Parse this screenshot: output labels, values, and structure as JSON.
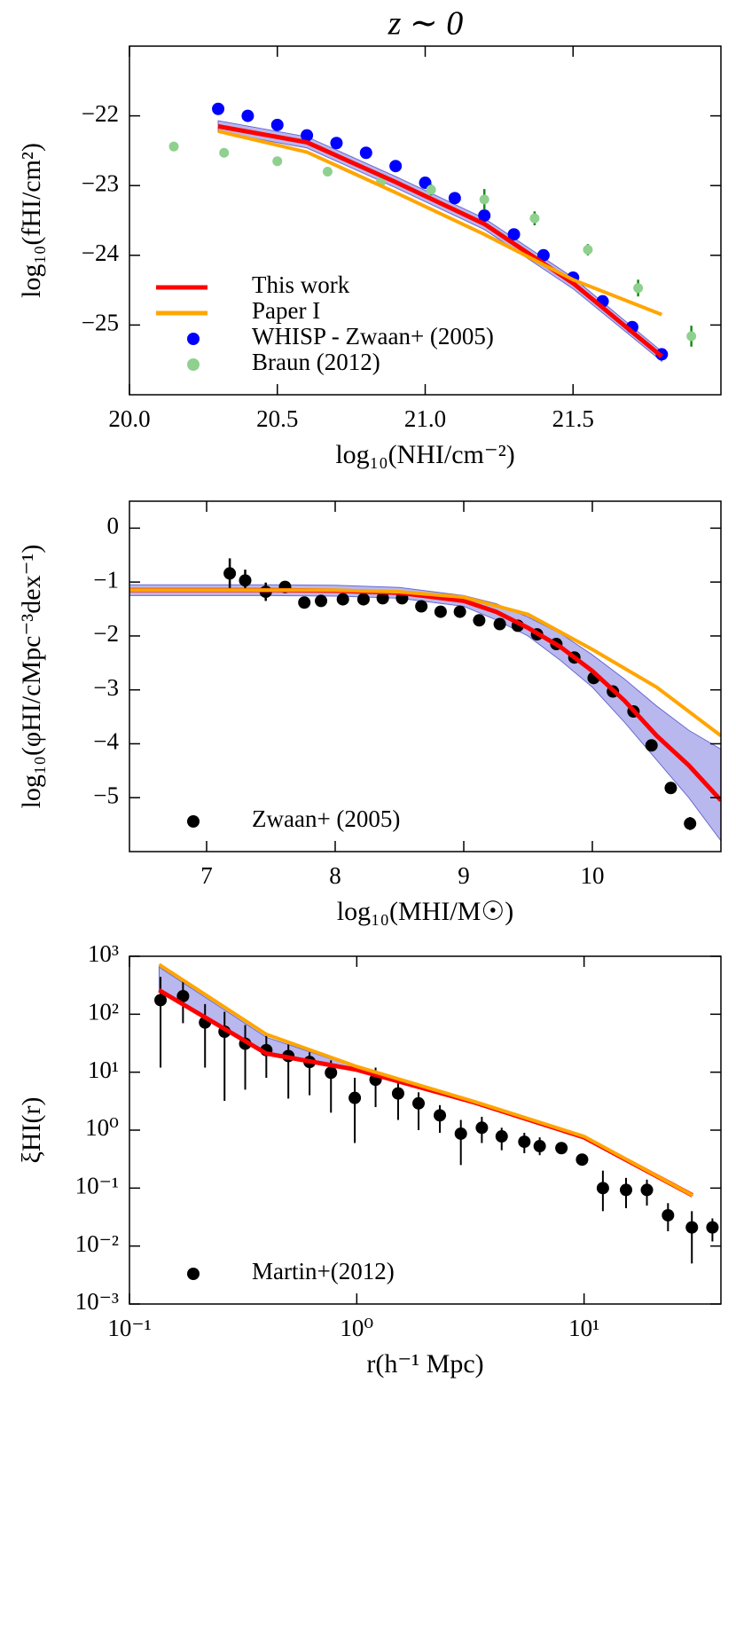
{
  "chart_data": [
    {
      "type": "line",
      "title": "z ∼ 0",
      "xlabel": "log₁₀(NHI/cm⁻²)",
      "ylabel": "log₁₀(fHI/cm²)",
      "xlim": [
        20,
        22
      ],
      "ylim": [
        -26,
        -21
      ],
      "xticks": [
        {
          "value": 20,
          "label": "20.0"
        },
        20.5,
        {
          "value": 21,
          "label": "21.0"
        },
        21.5
      ],
      "yticks": [
        {
          "value": -22,
          "label": "−22"
        },
        {
          "value": -23,
          "label": "−23"
        },
        {
          "value": -24,
          "label": "−24"
        },
        {
          "value": -25,
          "label": "−25"
        }
      ],
      "legend": "lower left",
      "series": [
        {
          "name": "This work",
          "type": "line",
          "color": "#ff0000",
          "band_color": "#9a9ae8",
          "x": [
            20.3,
            20.6,
            20.9,
            21.2,
            21.5,
            21.8
          ],
          "values": [
            -22.15,
            -22.38,
            -22.95,
            -23.55,
            -24.4,
            -25.45
          ],
          "upper": [
            -22.07,
            -22.3,
            -22.87,
            -23.47,
            -24.32,
            -25.38
          ],
          "lower": [
            -22.23,
            -22.46,
            -23.03,
            -23.63,
            -24.48,
            -25.52
          ]
        },
        {
          "name": "Paper I",
          "type": "line",
          "color": "#ffa500",
          "x": [
            20.3,
            20.6,
            20.9,
            21.2,
            21.5,
            21.8
          ],
          "values": [
            -22.22,
            -22.52,
            -23.1,
            -23.7,
            -24.35,
            -24.85
          ]
        },
        {
          "name": "WHISP - Zwaan+ (2005)",
          "type": "scatter",
          "color": "#0000ff",
          "x": [
            20.3,
            20.4,
            20.5,
            20.6,
            20.7,
            20.8,
            20.9,
            21.0,
            21.1,
            21.2,
            21.3,
            21.4,
            21.5,
            21.6,
            21.7,
            21.8
          ],
          "values": [
            -21.9,
            -22.0,
            -22.13,
            -22.28,
            -22.39,
            -22.53,
            -22.72,
            -22.96,
            -23.18,
            -23.43,
            -23.7,
            -24.0,
            -24.32,
            -24.66,
            -25.03,
            -25.42
          ]
        },
        {
          "name": "Braun (2012)",
          "type": "scatter",
          "color": "#8fd08f",
          "error_color": "#1a8a1a",
          "x": [
            20.15,
            20.32,
            20.5,
            20.67,
            20.85,
            21.02,
            21.2,
            21.37,
            21.55,
            21.72,
            21.9
          ],
          "values": [
            -22.44,
            -22.53,
            -22.65,
            -22.8,
            -22.95,
            -23.06,
            -23.2,
            -23.47,
            -23.92,
            -24.47,
            -25.16
          ],
          "errors": [
            0.03,
            0.03,
            0.04,
            0.05,
            0.05,
            0.08,
            0.15,
            0.1,
            0.08,
            0.12,
            0.15
          ]
        }
      ]
    },
    {
      "type": "line",
      "xlabel": "log₁₀(MHI/M☉)",
      "ylabel": "log₁₀(φHI/cMpc⁻³dex⁻¹)",
      "xlim": [
        6.4,
        11
      ],
      "ylim": [
        -6,
        0.5
      ],
      "xticks": [
        7,
        8,
        9,
        10
      ],
      "yticks": [
        0,
        {
          "value": -1,
          "label": "−1"
        },
        {
          "value": -2,
          "label": "−2"
        },
        {
          "value": -3,
          "label": "−3"
        },
        {
          "value": -4,
          "label": "−4"
        },
        {
          "value": -5,
          "label": "−5"
        }
      ],
      "legend": "lower left",
      "series": [
        {
          "type": "line",
          "color": "#ff0000",
          "band_color": "#9a9ae8",
          "x": [
            6.4,
            7,
            7.5,
            8,
            8.5,
            9,
            9.25,
            9.5,
            9.75,
            10,
            10.25,
            10.5,
            10.75,
            11
          ],
          "values": [
            -1.15,
            -1.15,
            -1.15,
            -1.16,
            -1.2,
            -1.35,
            -1.55,
            -1.85,
            -2.2,
            -2.65,
            -3.2,
            -3.85,
            -4.4,
            -5.05
          ],
          "upper": [
            -1.05,
            -1.05,
            -1.05,
            -1.06,
            -1.1,
            -1.25,
            -1.4,
            -1.65,
            -1.95,
            -2.35,
            -2.8,
            -3.3,
            -3.75,
            -4.1
          ],
          "lower": [
            -1.25,
            -1.25,
            -1.25,
            -1.26,
            -1.3,
            -1.45,
            -1.7,
            -2.0,
            -2.45,
            -2.95,
            -3.6,
            -4.3,
            -5.0,
            -5.8
          ]
        },
        {
          "type": "line",
          "color": "#ffa500",
          "x": [
            6.4,
            7,
            8,
            8.5,
            9,
            9.5,
            10,
            10.5,
            11
          ],
          "values": [
            -1.15,
            -1.15,
            -1.15,
            -1.18,
            -1.28,
            -1.6,
            -2.25,
            -2.95,
            -3.85
          ]
        },
        {
          "name": "Zwaan+ (2005)",
          "type": "scatter",
          "color": "#000000",
          "error_color": "#000000",
          "x": [
            7.18,
            7.3,
            7.46,
            7.61,
            7.76,
            7.89,
            8.06,
            8.22,
            8.37,
            8.52,
            8.67,
            8.82,
            8.97,
            9.12,
            9.28,
            9.42,
            9.57,
            9.72,
            9.86,
            10.01,
            10.16,
            10.32,
            10.46,
            10.61,
            10.76
          ],
          "values": [
            -0.84,
            -0.97,
            -1.18,
            -1.09,
            -1.38,
            -1.35,
            -1.32,
            -1.32,
            -1.3,
            -1.3,
            -1.45,
            -1.55,
            -1.55,
            -1.71,
            -1.78,
            -1.81,
            -1.97,
            -2.15,
            -2.4,
            -2.78,
            -3.03,
            -3.4,
            -4.03,
            -4.82,
            -5.48
          ],
          "errors": [
            0.28,
            0.2,
            0.17,
            0.1,
            0.08,
            0.05,
            0.05,
            0.05,
            0.05,
            0.05,
            0.05,
            0.05,
            0.05,
            0.05,
            0.05,
            0.05,
            0.05,
            0.05,
            0.05,
            0.05,
            0.06,
            0.07,
            0.08,
            0.1,
            0.12
          ]
        }
      ]
    },
    {
      "type": "line",
      "xlabel": "r(h⁻¹ Mpc)",
      "ylabel": "ξHI(r)",
      "xscale": "log",
      "yscale": "log",
      "xlim": [
        0.1,
        40
      ],
      "ylim": [
        0.001,
        1000
      ],
      "xticks": [
        {
          "value": 0.1,
          "label": "10⁻¹"
        },
        {
          "value": 1,
          "label": "10⁰"
        },
        {
          "value": 10,
          "label": "10¹"
        }
      ],
      "yticks": [
        {
          "value": 1000,
          "label": "10³"
        },
        {
          "value": 100,
          "label": "10²"
        },
        {
          "value": 10,
          "label": "10¹"
        },
        {
          "value": 1,
          "label": "10⁰"
        },
        {
          "value": 0.1,
          "label": "10⁻¹"
        },
        {
          "value": 0.01,
          "label": "10⁻²"
        },
        {
          "value": 0.001,
          "label": "10⁻³"
        }
      ],
      "legend": "lower left",
      "series": [
        {
          "type": "line",
          "color": "#ff0000",
          "band_color": "#9a9ae8",
          "x": [
            0.135,
            0.4,
            1,
            3.3,
            10,
            30
          ],
          "values": [
            260,
            21,
            11,
            3.0,
            0.75,
            0.075
          ],
          "upper": [
            650,
            40,
            12,
            3.1,
            0.78,
            0.076
          ],
          "lower": [
            260,
            21,
            11,
            3.0,
            0.75,
            0.075
          ]
        },
        {
          "type": "line",
          "color": "#ffa500",
          "x": [
            0.135,
            0.4,
            1,
            3.3,
            10,
            30
          ],
          "values": [
            720,
            45,
            12.5,
            3.1,
            0.78,
            0.075
          ]
        },
        {
          "name": "Martin+(2012)",
          "type": "scatter",
          "color": "#000000",
          "error_color": "#000000",
          "x": [
            0.137,
            0.172,
            0.215,
            0.262,
            0.323,
            0.4,
            0.5,
            0.62,
            0.77,
            0.98,
            1.21,
            1.52,
            1.87,
            2.32,
            2.87,
            3.55,
            4.34,
            5.46,
            6.38,
            7.95,
            9.8,
            12.1,
            15.3,
            18.9,
            23.4,
            29.8,
            36.7
          ],
          "values": [
            175,
            205,
            72,
            50,
            31,
            24,
            19,
            15,
            9.8,
            3.6,
            7.4,
            4.3,
            2.9,
            1.8,
            0.87,
            1.1,
            0.78,
            0.63,
            0.53,
            0.49,
            0.31,
            0.1,
            0.093,
            0.093,
            0.034,
            0.021,
            0.021
          ],
          "lower": [
            12,
            70,
            12,
            3.2,
            5,
            8,
            3.5,
            4,
            2,
            0.6,
            2.5,
            1.5,
            1.0,
            0.9,
            0.25,
            0.6,
            0.45,
            0.4,
            0.37,
            0.44,
            0.25,
            0.04,
            0.045,
            0.05,
            0.018,
            0.005,
            0.012
          ],
          "upper": [
            440,
            380,
            150,
            110,
            65,
            45,
            30,
            22,
            16,
            8,
            12,
            7.5,
            4.5,
            2.7,
            1.5,
            1.7,
            1.1,
            0.9,
            0.75,
            0.55,
            0.38,
            0.2,
            0.15,
            0.14,
            0.055,
            0.04,
            0.03
          ]
        }
      ]
    }
  ]
}
